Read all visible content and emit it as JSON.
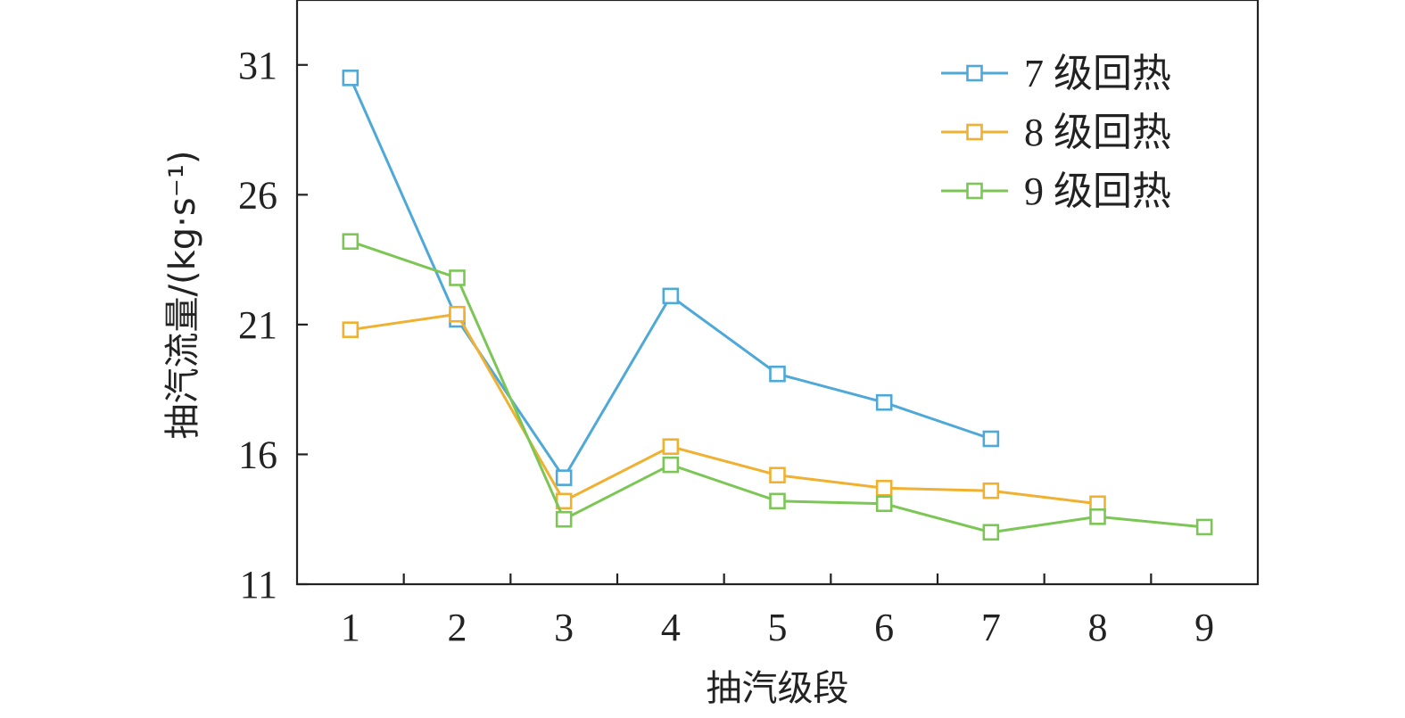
{
  "chart_data": {
    "type": "line",
    "xlabel": "抽汽级段",
    "ylabel": "抽汽流量/(kg·s⁻¹)",
    "x": [
      1,
      2,
      3,
      4,
      5,
      6,
      7,
      8,
      9
    ],
    "xlim": [
      0.5,
      9.5
    ],
    "ylim": [
      11,
      33.5
    ],
    "y_ticks": [
      11,
      16,
      21,
      26,
      31
    ],
    "x_ticks": [
      1,
      2,
      3,
      4,
      5,
      6,
      7,
      8,
      9
    ],
    "grid": false,
    "legend_position": "top-right",
    "series": [
      {
        "name": "7 级回热",
        "color": "#4ea8d8",
        "x": [
          1,
          2,
          3,
          4,
          5,
          6,
          7
        ],
        "values": [
          30.5,
          21.2,
          15.1,
          22.1,
          19.1,
          18.0,
          16.6
        ]
      },
      {
        "name": "8 级回热",
        "color": "#f0b030",
        "x": [
          1,
          2,
          3,
          4,
          5,
          6,
          7,
          8
        ],
        "values": [
          20.8,
          21.4,
          14.2,
          16.3,
          15.2,
          14.7,
          14.6,
          14.1
        ]
      },
      {
        "name": "9 级回热",
        "color": "#7cc656",
        "x": [
          1,
          2,
          3,
          4,
          5,
          6,
          7,
          8,
          9
        ],
        "values": [
          24.2,
          22.8,
          13.5,
          15.6,
          14.2,
          14.1,
          13.0,
          13.6,
          13.2
        ]
      }
    ]
  }
}
